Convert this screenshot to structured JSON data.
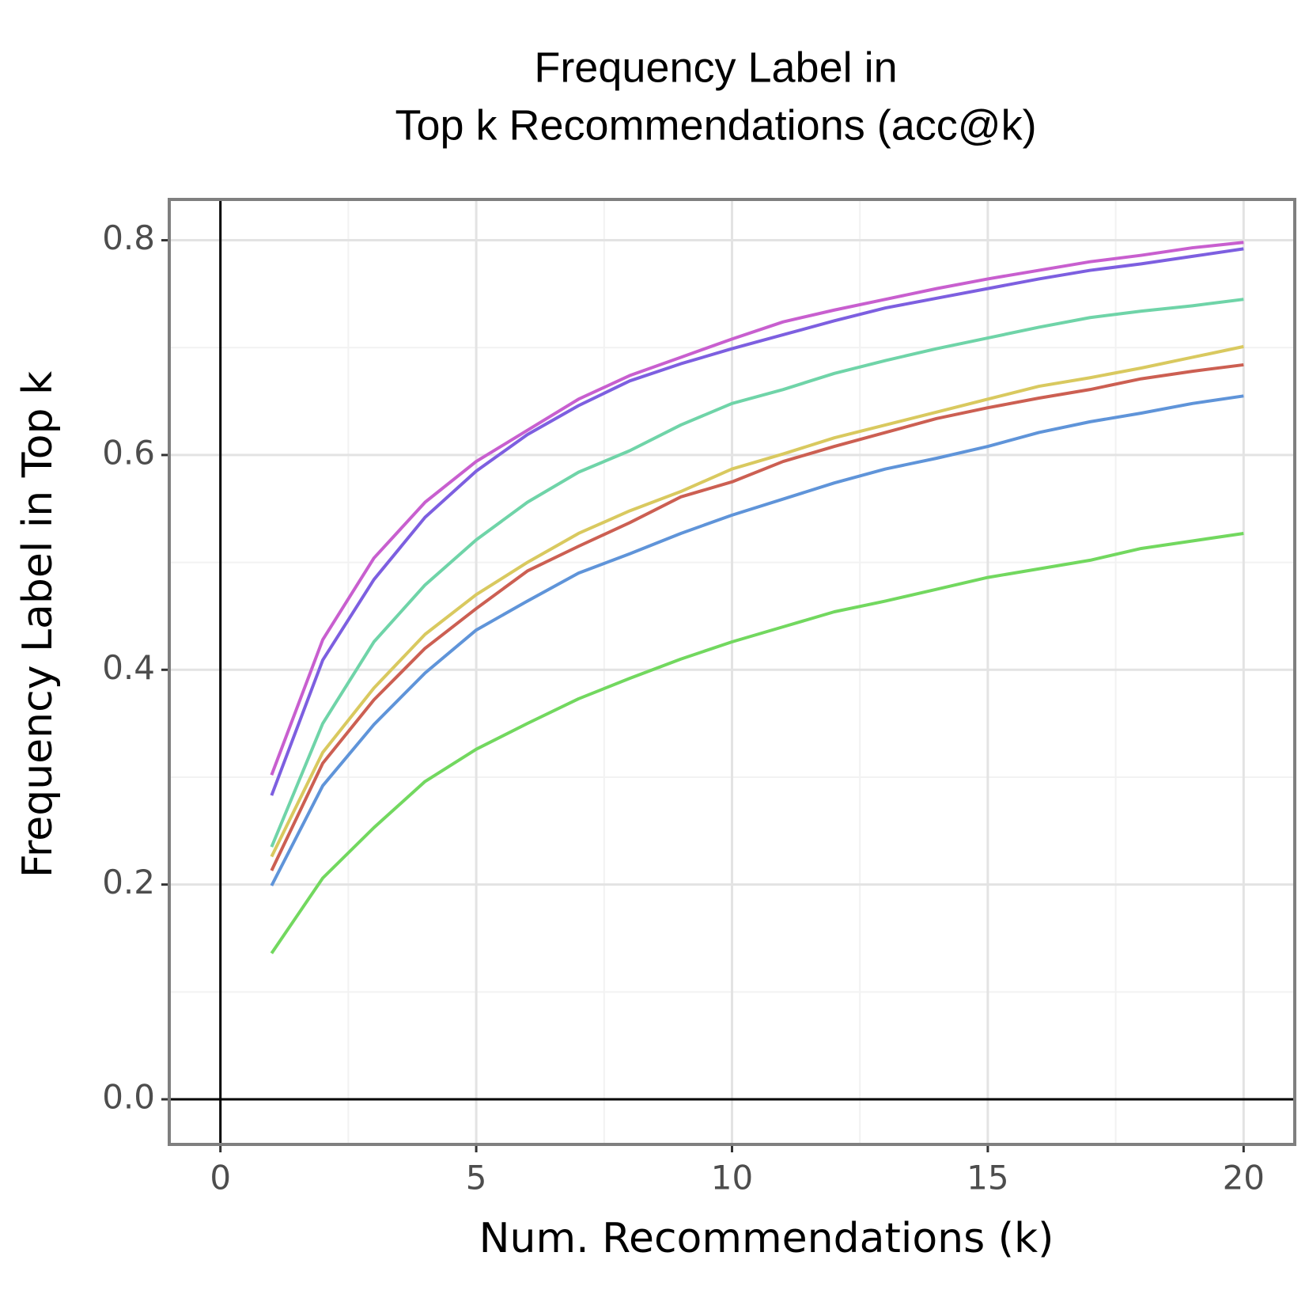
{
  "chart_data": {
    "type": "line",
    "title": [
      "Frequency Label in",
      "Top k Recommendations (acc@k)"
    ],
    "x_label": "Num. Recommendations (k)",
    "y_label": "Frequency Label in Top k",
    "x": [
      1,
      2,
      3,
      4,
      5,
      6,
      7,
      8,
      9,
      10,
      11,
      12,
      13,
      14,
      15,
      16,
      17,
      18,
      19,
      20
    ],
    "series": [
      {
        "color": "#c85fcf",
        "values": [
          0.302,
          0.428,
          0.504,
          0.556,
          0.594,
          0.623,
          0.652,
          0.674,
          0.691,
          0.708,
          0.724,
          0.735,
          0.745,
          0.755,
          0.764,
          0.772,
          0.78,
          0.786,
          0.793,
          0.798
        ]
      },
      {
        "color": "#7d5fe0",
        "values": [
          0.283,
          0.409,
          0.484,
          0.542,
          0.585,
          0.619,
          0.646,
          0.669,
          0.685,
          0.699,
          0.712,
          0.725,
          0.737,
          0.746,
          0.755,
          0.764,
          0.772,
          0.778,
          0.785,
          0.792
        ]
      },
      {
        "color": "#6fd4a8",
        "values": [
          0.235,
          0.35,
          0.426,
          0.479,
          0.521,
          0.556,
          0.584,
          0.604,
          0.628,
          0.648,
          0.661,
          0.676,
          0.688,
          0.699,
          0.709,
          0.719,
          0.728,
          0.734,
          0.739,
          0.745
        ]
      },
      {
        "color": "#d9c95f",
        "values": [
          0.226,
          0.323,
          0.383,
          0.433,
          0.47,
          0.5,
          0.527,
          0.548,
          0.566,
          0.587,
          0.601,
          0.616,
          0.628,
          0.64,
          0.652,
          0.664,
          0.672,
          0.681,
          0.691,
          0.701
        ]
      },
      {
        "color": "#cc5f52",
        "values": [
          0.213,
          0.313,
          0.372,
          0.42,
          0.457,
          0.492,
          0.515,
          0.537,
          0.561,
          0.575,
          0.594,
          0.608,
          0.621,
          0.634,
          0.644,
          0.653,
          0.661,
          0.671,
          0.678,
          0.684
        ]
      },
      {
        "color": "#5f94d9",
        "values": [
          0.199,
          0.292,
          0.349,
          0.397,
          0.437,
          0.464,
          0.49,
          0.508,
          0.527,
          0.544,
          0.559,
          0.574,
          0.587,
          0.597,
          0.608,
          0.621,
          0.631,
          0.639,
          0.648,
          0.655
        ]
      },
      {
        "color": "#72d85f",
        "values": [
          0.136,
          0.206,
          0.253,
          0.296,
          0.326,
          0.35,
          0.373,
          0.392,
          0.41,
          0.426,
          0.44,
          0.454,
          0.464,
          0.475,
          0.486,
          0.494,
          0.502,
          0.513,
          0.52,
          0.527
        ]
      }
    ],
    "xlim": [
      -1,
      21
    ],
    "ylim": [
      -0.042,
      0.838
    ],
    "xticks": [
      0,
      5,
      10,
      15,
      20
    ],
    "yticks": [
      {
        "value": 0,
        "label": "0.0"
      },
      0.2,
      0.4,
      0.6,
      0.8
    ],
    "grid": true,
    "hline": 0,
    "vline": 0
  }
}
